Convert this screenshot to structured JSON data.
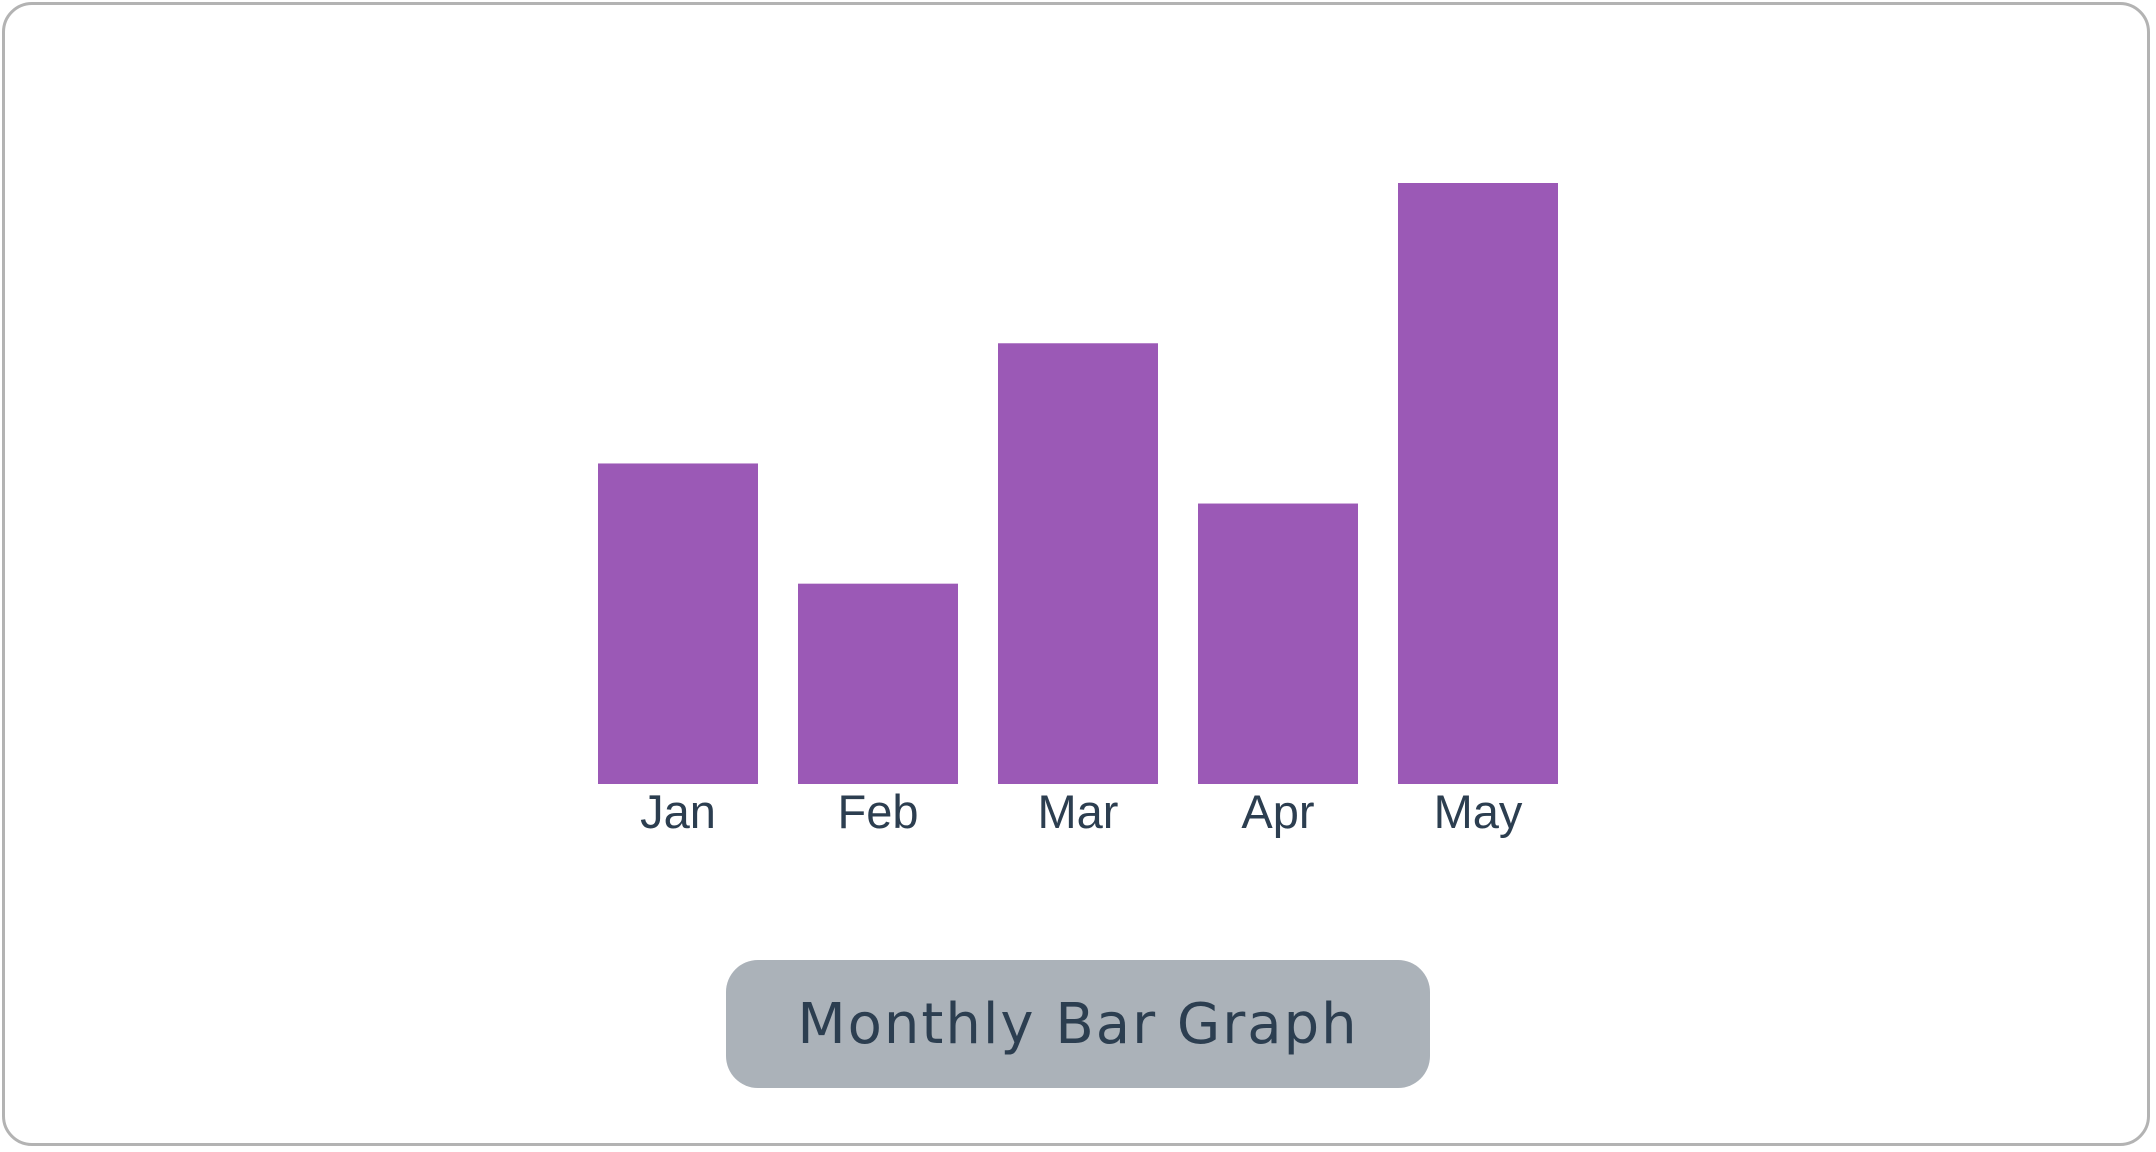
{
  "chart_data": {
    "type": "bar",
    "title": "Monthly Bar Graph",
    "categories": [
      "Jan",
      "Feb",
      "Mar",
      "Apr",
      "May"
    ],
    "values": [
      40,
      25,
      55,
      35,
      75
    ],
    "ylim": [
      0,
      75
    ],
    "grid": false,
    "legend": "none",
    "colors": {
      "bar": "#9b59b6",
      "label": "#2c3e50",
      "title_background": "#abb2b9",
      "frame_border": "#b3b3b3"
    }
  }
}
